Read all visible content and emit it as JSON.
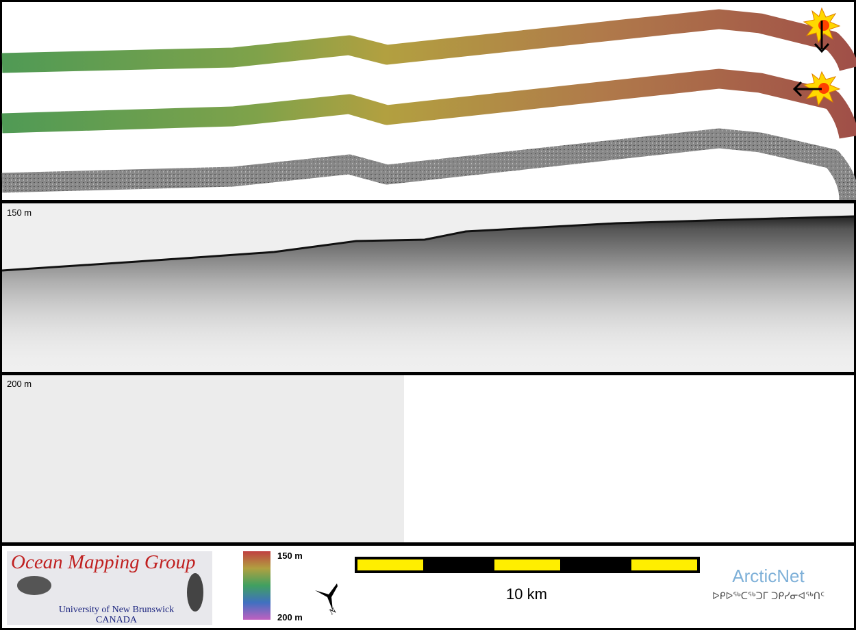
{
  "panels": {
    "water_column_top_label": "150 m",
    "water_column_bottom_label": "200 m"
  },
  "footer": {
    "logo_title": "Ocean Mapping Group",
    "logo_university": "University of New Brunswick",
    "logo_country": "CANADA",
    "colorbar_top_label": "150 m",
    "colorbar_bottom_label": "200 m",
    "scale_label": "10 km",
    "partner_name": "ArcticNet",
    "partner_syllabics": "ᐅᑭᐅᖅᑕᖅᑐᒥ ᑐᑭᓯᓂᐊᖅᑎᑦ"
  }
}
